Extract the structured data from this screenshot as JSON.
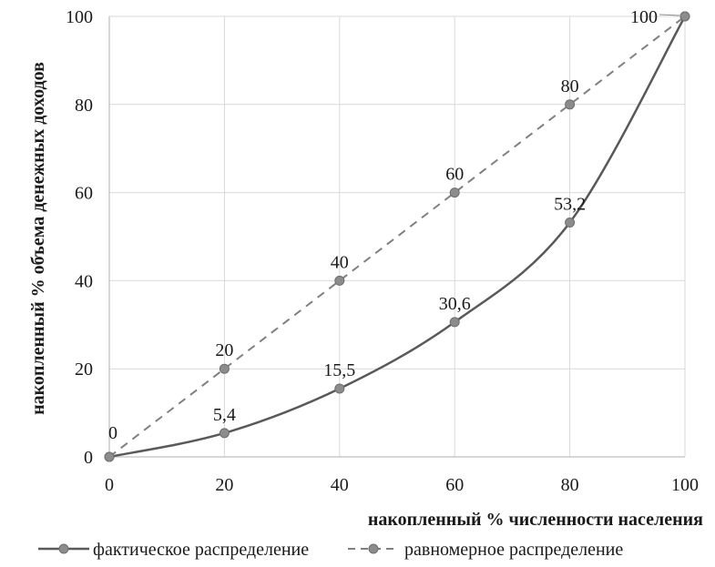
{
  "chart_data": {
    "type": "line",
    "x": [
      0,
      20,
      40,
      60,
      80,
      100
    ],
    "xlabel": "накопленный  % численности  населения",
    "ylabel": "накопленный  % объема денежных доходов",
    "xlim": [
      0,
      100
    ],
    "ylim": [
      0,
      100
    ],
    "x_ticks": [
      "0",
      "20",
      "40",
      "60",
      "80",
      "100"
    ],
    "y_ticks": [
      "0",
      "20",
      "40",
      "60",
      "80",
      "100"
    ],
    "grid": true,
    "legend_position": "bottom",
    "series": [
      {
        "name": "фактическое распределение",
        "style": "solid",
        "color": "#595959",
        "values": [
          0,
          5.4,
          15.5,
          30.6,
          53.2,
          100
        ],
        "labels": [
          "0",
          "5,4",
          "15,5",
          "30,6",
          "53,2",
          "100"
        ]
      },
      {
        "name": "равномерное распределение",
        "style": "dashed",
        "color": "#808080",
        "values": [
          0,
          20,
          40,
          60,
          80,
          100
        ],
        "labels": [
          "",
          "20",
          "40",
          "60",
          "80",
          ""
        ]
      }
    ]
  },
  "colors": {
    "grid": "#d9d9d9",
    "axis": "#bfbfbf",
    "marker_fill": "#8c8c8c"
  }
}
